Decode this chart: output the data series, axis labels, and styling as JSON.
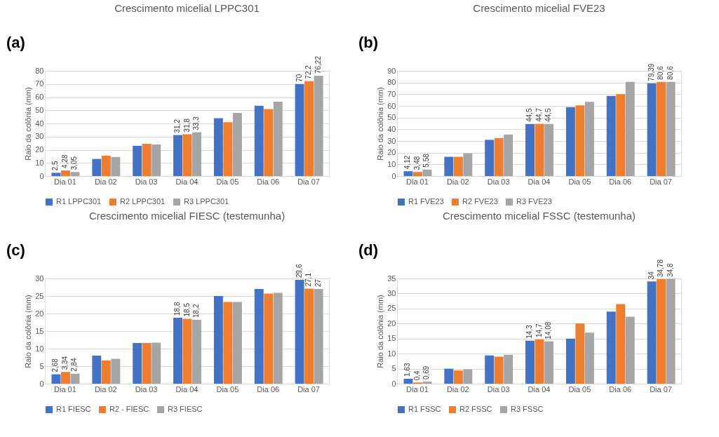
{
  "chart_data": [
    {
      "type": "bar",
      "title": "Crescimento micelial LPPC301",
      "ylabel": "Raio da colônia (mm)",
      "annotations": [
        "(a)"
      ],
      "categories": [
        "Dia 01",
        "Dia 02",
        "Dia 03",
        "Dia 04",
        "Dia 05",
        "Dia 06",
        "Dia 07"
      ],
      "ylim": [
        0,
        80
      ],
      "yticks": [
        0,
        10,
        20,
        30,
        40,
        50,
        60,
        70,
        80
      ],
      "grid": "y",
      "legend": "bottom",
      "series": [
        {
          "name": "R1 LPPC301",
          "color": "#4472c4",
          "values": [
            2.5,
            13,
            23,
            31.2,
            44,
            53.5,
            70
          ],
          "value_labels": [
            "2,5",
            null,
            null,
            "31,2",
            null,
            null,
            "70"
          ]
        },
        {
          "name": "R2 LPPC301",
          "color": "#ed7d31",
          "values": [
            4.28,
            15.5,
            24.5,
            31.8,
            41,
            51,
            72.2
          ],
          "value_labels": [
            "4,28",
            null,
            null,
            "31,8",
            null,
            null,
            "72,2"
          ]
        },
        {
          "name": "R3 LPPC301",
          "color": "#a5a5a5",
          "values": [
            3.05,
            14.5,
            24,
            33.3,
            48,
            56.5,
            76.22
          ],
          "value_labels": [
            "3,05",
            null,
            null,
            "33,3",
            null,
            null,
            "76,22"
          ]
        }
      ]
    },
    {
      "type": "bar",
      "title": "Crescimento micelial FVE23",
      "ylabel": "Raio da colônia (mm)",
      "annotations": [
        "(b)"
      ],
      "categories": [
        "Dia 01",
        "Dia 02",
        "Dia 03",
        "Dia 04",
        "Dia 05",
        "Dia 06",
        "Dia 07"
      ],
      "ylim": [
        0,
        90
      ],
      "yticks": [
        0,
        10,
        20,
        30,
        40,
        50,
        60,
        70,
        80,
        90
      ],
      "grid": "y",
      "legend": "bottom",
      "series": [
        {
          "name": "R1 FVE23",
          "color": "#4472c4",
          "values": [
            4.12,
            16.5,
            31,
            44.5,
            59,
            68.5,
            79.39
          ],
          "value_labels": [
            "4,12",
            null,
            null,
            "44,5",
            null,
            null,
            "79,39"
          ]
        },
        {
          "name": "R2 FVE23",
          "color": "#ed7d31",
          "values": [
            3.48,
            16.5,
            32.5,
            44.7,
            60.5,
            70,
            80.6
          ],
          "value_labels": [
            "3,48",
            null,
            null,
            "44,7",
            null,
            null,
            "80,6"
          ]
        },
        {
          "name": "R3 FVE23",
          "color": "#a5a5a5",
          "values": [
            5.58,
            19.5,
            35.5,
            44.5,
            63.5,
            80.5,
            80.6
          ],
          "value_labels": [
            "5,58",
            null,
            null,
            "44,5",
            null,
            null,
            "80,6"
          ]
        }
      ]
    },
    {
      "type": "bar",
      "title": "Crescimento micelial FIESC (testemunha)",
      "ylabel": "Raio da colônia (mm)",
      "annotations": [
        "(c)"
      ],
      "categories": [
        "Dia 01",
        "Dia 02",
        "Dia 03",
        "Dia 04",
        "Dia 05",
        "Dia 06",
        "Dia 07"
      ],
      "ylim": [
        0,
        30
      ],
      "yticks": [
        0,
        5,
        10,
        15,
        20,
        25,
        30
      ],
      "grid": "y",
      "legend": "bottom",
      "series": [
        {
          "name": "R1 FIESC",
          "color": "#4472c4",
          "values": [
            2.68,
            8,
            11.6,
            18.8,
            25,
            27,
            29.6
          ],
          "value_labels": [
            "2,68",
            null,
            null,
            "18,8",
            null,
            null,
            "29,6"
          ]
        },
        {
          "name": "R2 - FIESC",
          "color": "#ed7d31",
          "values": [
            3.34,
            6.6,
            11.6,
            18.5,
            23.3,
            25.7,
            27.1
          ],
          "value_labels": [
            "3,34",
            null,
            null,
            "18,5",
            null,
            null,
            "27,1"
          ]
        },
        {
          "name": "R3 FIESC",
          "color": "#a5a5a5",
          "values": [
            2.84,
            7.1,
            11.7,
            18.2,
            23.3,
            25.9,
            27
          ],
          "value_labels": [
            "2,84",
            null,
            null,
            "18,2",
            null,
            null,
            "27"
          ]
        }
      ]
    },
    {
      "type": "bar",
      "title": "Crescimento micelial FSSC (testemunha)",
      "ylabel": "Raio da colônia (mm)",
      "annotations": [
        "(d)"
      ],
      "categories": [
        "Dia 01",
        "Dia 02",
        "Dia 03",
        "Dia 04",
        "Dia 05",
        "Dia 06",
        "Dia 07"
      ],
      "ylim": [
        0,
        35
      ],
      "yticks": [
        0,
        5,
        10,
        15,
        20,
        25,
        30,
        35
      ],
      "grid": "y",
      "legend": "bottom",
      "series": [
        {
          "name": "R1 FSSC",
          "color": "#4472c4",
          "values": [
            1.63,
            5,
            9.4,
            14.3,
            15,
            24,
            34
          ],
          "value_labels": [
            "1,63",
            null,
            null,
            "14,3",
            null,
            null,
            "34"
          ]
        },
        {
          "name": "R2 FSSC",
          "color": "#ed7d31",
          "values": [
            0.4,
            4.4,
            9,
            14.7,
            20,
            26.5,
            34.78
          ],
          "value_labels": [
            "0,4",
            null,
            null,
            "14,7",
            null,
            null,
            "34,78"
          ]
        },
        {
          "name": "R3 FSSC",
          "color": "#a5a5a5",
          "values": [
            0.69,
            4.8,
            9.6,
            14.08,
            17,
            22.3,
            34.8
          ],
          "value_labels": [
            "0,69",
            null,
            null,
            "14,08",
            null,
            null,
            "34,8"
          ]
        }
      ]
    }
  ]
}
